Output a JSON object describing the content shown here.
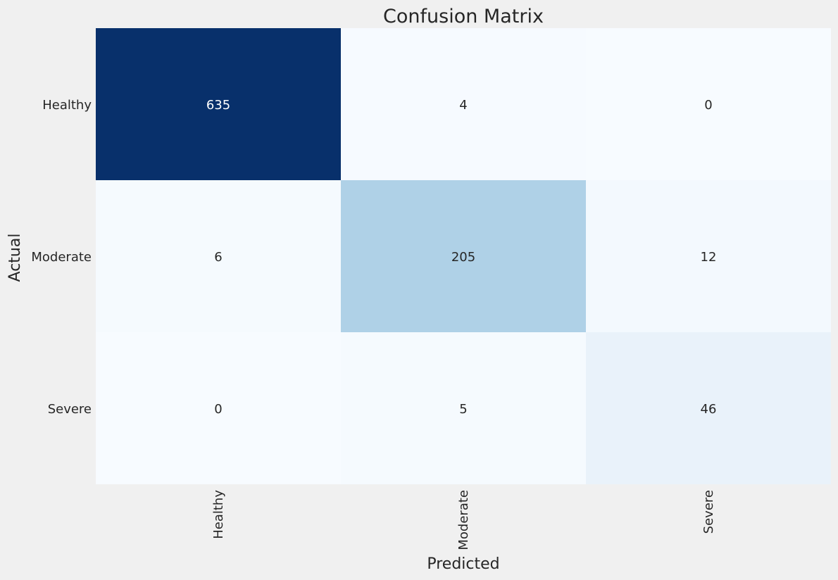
{
  "chart_data": {
    "type": "heatmap",
    "title": "Confusion Matrix",
    "xlabel": "Predicted",
    "ylabel": "Actual",
    "x_categories": [
      "Healthy",
      "Moderate",
      "Severe"
    ],
    "y_categories": [
      "Healthy",
      "Moderate",
      "Severe"
    ],
    "matrix": [
      [
        635,
        4,
        0
      ],
      [
        6,
        205,
        12
      ],
      [
        0,
        5,
        46
      ]
    ],
    "colormap": "Blues",
    "colorbar": false,
    "color_low": "#f7fbff",
    "color_high": "#08306b",
    "text_dark": "#262626",
    "text_light": "#ffffff",
    "background": "#f0f0f0"
  }
}
